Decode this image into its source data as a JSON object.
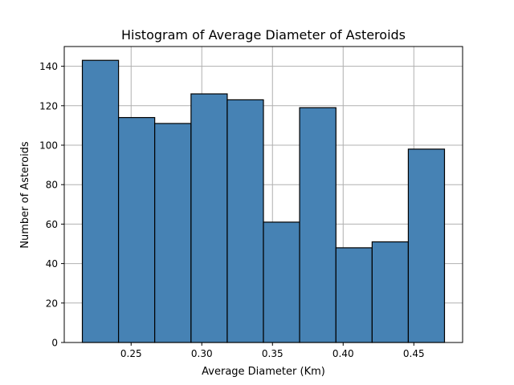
{
  "chart_data": {
    "type": "bar",
    "title": "Histogram of Average Diameter of Asteroids",
    "xlabel": "Average Diameter (Km)",
    "ylabel": "Number of Asteroids",
    "bin_edges": [
      0.2155,
      0.2411,
      0.2667,
      0.2924,
      0.318,
      0.3436,
      0.3692,
      0.3949,
      0.4205,
      0.4461,
      0.4717
    ],
    "values": [
      143,
      114,
      111,
      126,
      123,
      61,
      119,
      48,
      51,
      98
    ],
    "xlim": [
      0.2027,
      0.4845
    ],
    "ylim": [
      0,
      150
    ],
    "xticks": [
      {
        "value": 0.25,
        "label": "0.25"
      },
      {
        "value": 0.3,
        "label": "0.30"
      },
      {
        "value": 0.35,
        "label": "0.35"
      },
      {
        "value": 0.4,
        "label": "0.40"
      },
      {
        "value": 0.45,
        "label": "0.45"
      }
    ],
    "yticks": [
      {
        "value": 0,
        "label": "0"
      },
      {
        "value": 20,
        "label": "20"
      },
      {
        "value": 40,
        "label": "40"
      },
      {
        "value": 60,
        "label": "60"
      },
      {
        "value": 80,
        "label": "80"
      },
      {
        "value": 100,
        "label": "100"
      },
      {
        "value": 120,
        "label": "120"
      },
      {
        "value": 140,
        "label": "140"
      }
    ],
    "grid": true,
    "bar_color": "#4682b4",
    "edge_color": "#000000",
    "grid_color": "#b0b0b0"
  }
}
